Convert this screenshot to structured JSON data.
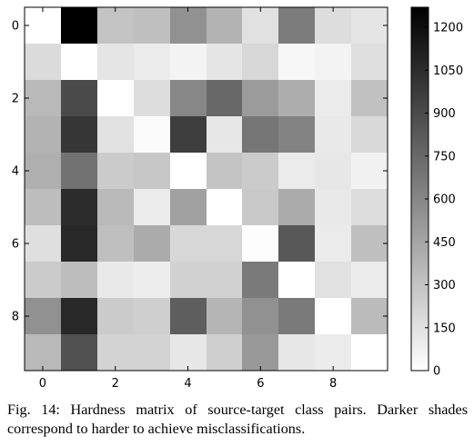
{
  "chart_data": {
    "type": "heatmap",
    "colormap": "gray_r",
    "title": "",
    "xlabel": "",
    "ylabel": "",
    "x_ticks": [
      "0",
      "2",
      "4",
      "6",
      "8"
    ],
    "y_ticks": [
      "0",
      "2",
      "4",
      "6",
      "8"
    ],
    "x_tick_positions": [
      0,
      2,
      4,
      6,
      8
    ],
    "y_tick_positions": [
      0,
      2,
      4,
      6,
      8
    ],
    "colorbar": {
      "min": 0,
      "max": 1270,
      "ticks": [
        0,
        150,
        300,
        450,
        600,
        750,
        900,
        1050,
        1200
      ],
      "tick_labels": [
        "0",
        "150",
        "300",
        "450",
        "600",
        "750",
        "900",
        "1050",
        "1200"
      ]
    },
    "matrix": [
      [
        0,
        1270,
        300,
        320,
        550,
        380,
        150,
        650,
        170,
        130
      ],
      [
        180,
        0,
        130,
        100,
        60,
        130,
        200,
        40,
        60,
        160
      ],
      [
        350,
        900,
        0,
        170,
        600,
        750,
        500,
        410,
        100,
        310
      ],
      [
        380,
        1000,
        150,
        20,
        960,
        120,
        680,
        620,
        110,
        190
      ],
      [
        400,
        700,
        260,
        280,
        0,
        300,
        260,
        100,
        120,
        70
      ],
      [
        330,
        1050,
        350,
        100,
        470,
        0,
        270,
        420,
        110,
        170
      ],
      [
        160,
        1070,
        320,
        420,
        200,
        200,
        10,
        830,
        100,
        320
      ],
      [
        260,
        330,
        110,
        90,
        230,
        230,
        660,
        0,
        150,
        100
      ],
      [
        550,
        1070,
        260,
        240,
        800,
        370,
        550,
        660,
        0,
        340
      ],
      [
        350,
        870,
        220,
        220,
        120,
        240,
        510,
        120,
        100,
        0
      ]
    ]
  },
  "caption": {
    "text": "Fig. 14: Hardness matrix of source-target class pairs. Darker shades correspond to harder to achieve misclassifications."
  }
}
